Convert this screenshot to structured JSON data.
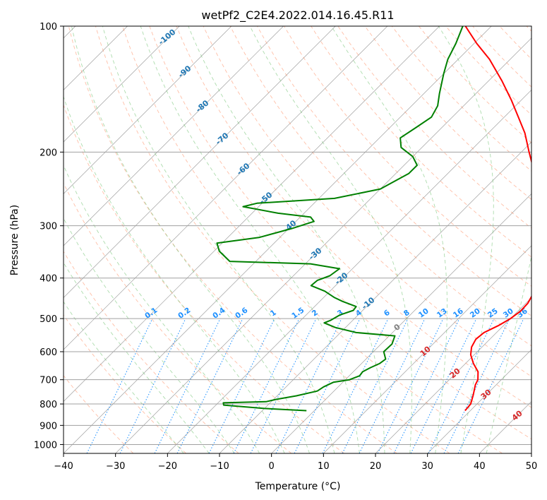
{
  "chart_data": {
    "type": "line",
    "title": "wetPf2_C2E4.2022.014.16.45.R11",
    "xlabel": "Temperature (°C)",
    "ylabel": "Pressure (hPa)",
    "xlim": [
      -40,
      50
    ],
    "ylim": [
      1050,
      100
    ],
    "y_scale": "log",
    "skew": 35,
    "x_ticks": [
      -40,
      -30,
      -20,
      -10,
      0,
      10,
      20,
      30,
      40,
      50
    ],
    "x_tick_labels": [
      "−40",
      "−30",
      "−20",
      "−10",
      "0",
      "10",
      "20",
      "30",
      "40",
      "50"
    ],
    "y_ticks": [
      1000,
      900,
      800,
      700,
      600,
      500,
      400,
      300,
      200,
      100
    ],
    "y_tick_labels": [
      "1000",
      "900",
      "800",
      "700",
      "600",
      "500",
      "400",
      "300",
      "200",
      "100"
    ],
    "grid": true,
    "colors": {
      "temperature": "#ff0000",
      "dewpoint": "#008000",
      "isotherm": "#808080",
      "dry_adiabat": "#ff7f50",
      "moist_adiabat": "#6abf69",
      "mixing_ratio": "#1e90ff",
      "lcl_label": "#808080",
      "iso_label_cold": "#1f77b4",
      "iso_label_warm": "#d62728"
    },
    "series": [
      {
        "name": "temperature",
        "color": "#ff0000",
        "points": [
          [
            830,
            29.0
          ],
          [
            800,
            28.8
          ],
          [
            760,
            27.5
          ],
          [
            720,
            26.0
          ],
          [
            700,
            25.5
          ],
          [
            670,
            24.0
          ],
          [
            640,
            21.5
          ],
          [
            610,
            19.3
          ],
          [
            585,
            18.0
          ],
          [
            560,
            17.3
          ],
          [
            540,
            17.6
          ],
          [
            520,
            19.0
          ],
          [
            500,
            20.0
          ],
          [
            480,
            20.5
          ],
          [
            460,
            20.4
          ],
          [
            440,
            19.7
          ],
          [
            420,
            18.3
          ],
          [
            400,
            16.6
          ],
          [
            380,
            15.1
          ],
          [
            360,
            13.7
          ],
          [
            340,
            12.7
          ],
          [
            320,
            11.2
          ],
          [
            300,
            8.6
          ],
          [
            280,
            6.5
          ],
          [
            260,
            3.4
          ],
          [
            240,
            -0.4
          ],
          [
            220,
            -4.3
          ],
          [
            200,
            -8.5
          ],
          [
            180,
            -13.0
          ],
          [
            165,
            -17.3
          ],
          [
            150,
            -22.0
          ],
          [
            135,
            -27.5
          ],
          [
            120,
            -34.0
          ],
          [
            110,
            -39.5
          ],
          [
            100,
            -45.0
          ]
        ]
      },
      {
        "name": "dewpoint",
        "color": "#008000",
        "points": [
          [
            830,
            -1.5
          ],
          [
            820,
            -10.0
          ],
          [
            805,
            -18.5
          ],
          [
            795,
            -19.0
          ],
          [
            790,
            -11.0
          ],
          [
            780,
            -9.5
          ],
          [
            765,
            -6.3
          ],
          [
            745,
            -3.2
          ],
          [
            728,
            -2.8
          ],
          [
            710,
            -1.8
          ],
          [
            700,
            0.8
          ],
          [
            685,
            2.0
          ],
          [
            670,
            1.8
          ],
          [
            655,
            2.5
          ],
          [
            640,
            3.5
          ],
          [
            625,
            3.8
          ],
          [
            600,
            2.0
          ],
          [
            575,
            2.1
          ],
          [
            550,
            1.1
          ],
          [
            540,
            -7.0
          ],
          [
            525,
            -12.0
          ],
          [
            512,
            -15.0
          ],
          [
            505,
            -14.3
          ],
          [
            490,
            -13.5
          ],
          [
            478,
            -11.8
          ],
          [
            468,
            -12.0
          ],
          [
            455,
            -15.6
          ],
          [
            445,
            -18.0
          ],
          [
            430,
            -21.0
          ],
          [
            417,
            -24.7
          ],
          [
            405,
            -24.5
          ],
          [
            395,
            -23.0
          ],
          [
            380,
            -22.5
          ],
          [
            370,
            -29.0
          ],
          [
            365,
            -45.0
          ],
          [
            345,
            -49.0
          ],
          [
            330,
            -51.0
          ],
          [
            320,
            -44.0
          ],
          [
            305,
            -39.5
          ],
          [
            293,
            -36.5
          ],
          [
            286,
            -38.0
          ],
          [
            280,
            -45.0
          ],
          [
            270,
            -53.0
          ],
          [
            265,
            -51.0
          ],
          [
            258,
            -37.0
          ],
          [
            245,
            -30.0
          ],
          [
            225,
            -27.5
          ],
          [
            215,
            -27.5
          ],
          [
            205,
            -30.0
          ],
          [
            195,
            -34.0
          ],
          [
            185,
            -36.0
          ],
          [
            175,
            -35.0
          ],
          [
            165,
            -34.0
          ],
          [
            155,
            -35.0
          ],
          [
            145,
            -37.0
          ],
          [
            130,
            -40.0
          ],
          [
            120,
            -42.0
          ],
          [
            110,
            -43.5
          ],
          [
            100,
            -45.5
          ]
        ]
      }
    ],
    "isotherm_labels": [
      {
        "value": -100,
        "text": "-100"
      },
      {
        "value": -90,
        "text": "-90"
      },
      {
        "value": -80,
        "text": "-80"
      },
      {
        "value": -70,
        "text": "-70"
      },
      {
        "value": -60,
        "text": "-60"
      },
      {
        "value": -50,
        "text": "-50"
      },
      {
        "value": -40,
        "text": "-40"
      },
      {
        "value": -30,
        "text": "-30"
      },
      {
        "value": -20,
        "text": "-20"
      },
      {
        "value": -10,
        "text": "-10"
      },
      {
        "value": 0,
        "text": "0"
      },
      {
        "value": 10,
        "text": "10"
      },
      {
        "value": 20,
        "text": "20"
      },
      {
        "value": 30,
        "text": "30"
      },
      {
        "value": 40,
        "text": "40"
      }
    ],
    "mixing_ratio_lines": [
      {
        "value": 0.1,
        "text": "0.1"
      },
      {
        "value": 0.2,
        "text": "0.2"
      },
      {
        "value": 0.4,
        "text": "0.4"
      },
      {
        "value": 0.6,
        "text": "0.6"
      },
      {
        "value": 1,
        "text": "1"
      },
      {
        "value": 1.5,
        "text": "1.5"
      },
      {
        "value": 2,
        "text": "2"
      },
      {
        "value": 3,
        "text": "3"
      },
      {
        "value": 4,
        "text": "4"
      },
      {
        "value": 6,
        "text": "6"
      },
      {
        "value": 8,
        "text": "8"
      },
      {
        "value": 10,
        "text": "10"
      },
      {
        "value": 13,
        "text": "13"
      },
      {
        "value": 16,
        "text": "16"
      },
      {
        "value": 20,
        "text": "20"
      },
      {
        "value": 25,
        "text": "25"
      },
      {
        "value": 30,
        "text": "30"
      },
      {
        "value": 36,
        "text": "36"
      }
    ]
  }
}
